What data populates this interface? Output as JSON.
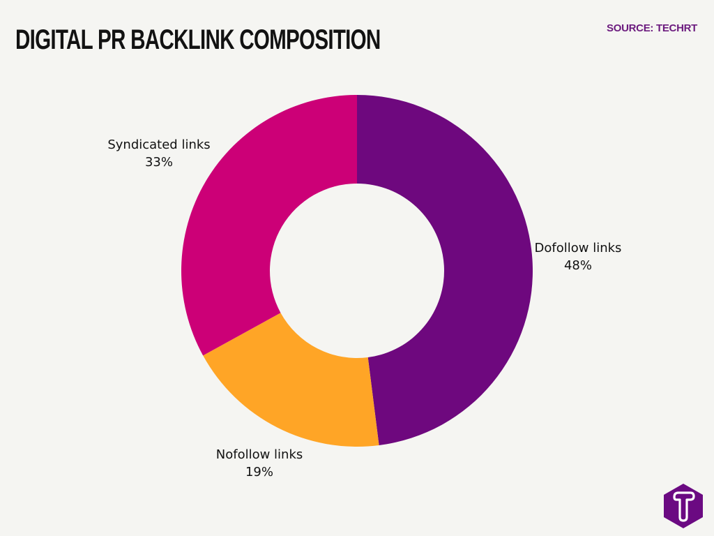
{
  "header": {
    "title": "DIGITAL PR BACKLINK COMPOSITION",
    "source": "SOURCE: TECHRT"
  },
  "logo": {
    "icon": "techrt-t-hexagon-icon",
    "color": "#6b0a82"
  },
  "chart_data": {
    "type": "pie",
    "variant": "donut",
    "title": "DIGITAL PR BACKLINK COMPOSITION",
    "source": "SOURCE: TECHRT",
    "start_angle": "12 o'clock, clockwise",
    "categories": [
      "Dofollow links",
      "Nofollow links",
      "Syndicated links"
    ],
    "values": [
      48,
      19,
      33
    ],
    "unit": "%",
    "colors": [
      "#6e087e",
      "#ffa526",
      "#cc0077"
    ],
    "labels": [
      {
        "name": "Dofollow links",
        "value": "48%"
      },
      {
        "name": "Nofollow links",
        "value": "19%"
      },
      {
        "name": "Syndicated links",
        "value": "33%"
      }
    ],
    "legend": "none (direct labels)"
  },
  "colors": {
    "background": "#f5f5f2",
    "title": "#121212",
    "source": "#6b1a7e"
  }
}
